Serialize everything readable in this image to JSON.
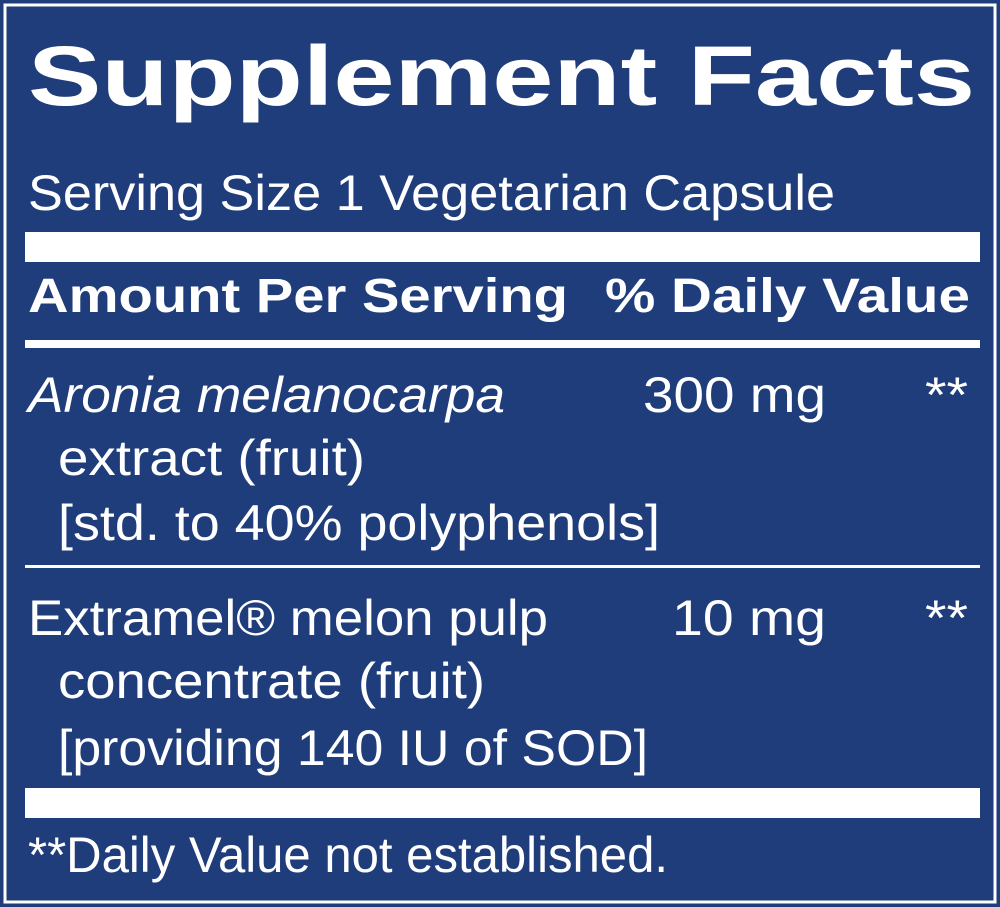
{
  "title": "Supplement Facts",
  "serving_size": "Serving Size 1 Vegetarian Capsule",
  "table": {
    "header": [
      "Amount Per Serving",
      "% Daily Value"
    ],
    "rows": [
      {
        "name_lines": [
          "Aronia melanocarpa",
          "extract (fruit)",
          "[std. to 40% polyphenols]"
        ],
        "amount": "300 mg",
        "daily_value": "**"
      },
      {
        "name_lines": [
          "Extramel® melon pulp",
          "concentrate (fruit)",
          "[providing 140 IU of SOD]"
        ],
        "amount": "10 mg",
        "daily_value": "**"
      }
    ]
  },
  "footnote": "**Daily Value not established."
}
